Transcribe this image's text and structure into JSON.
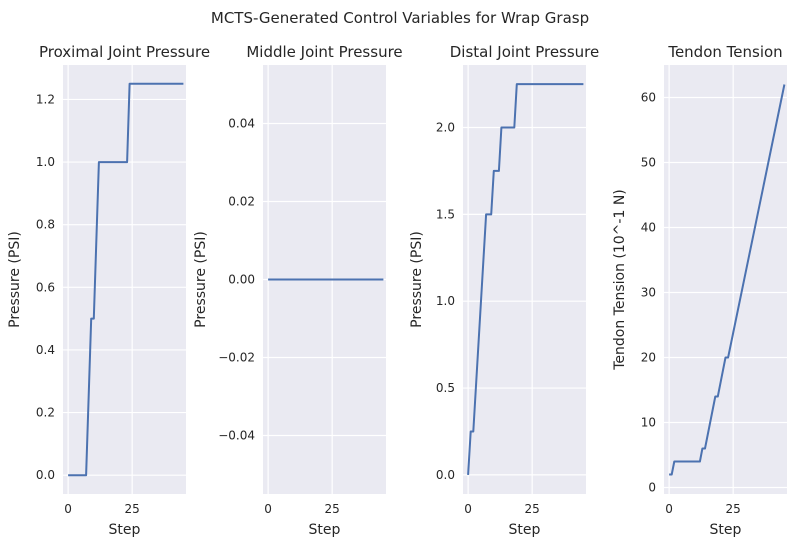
{
  "figure": {
    "title": "MCTS-Generated Control Variables for Wrap Grasp"
  },
  "chart_data": [
    {
      "type": "line",
      "title": "Proximal Joint Pressure",
      "xlabel": "Step",
      "ylabel": "Pressure (PSI)",
      "xlim": [
        -2,
        46
      ],
      "ylim": [
        -0.06,
        1.31
      ],
      "xticks": [
        0,
        25
      ],
      "yticks": [
        0.0,
        0.2,
        0.4,
        0.6,
        0.8,
        1.0,
        1.2
      ],
      "ytick_labels": [
        "0.0",
        "0.2",
        "0.4",
        "0.6",
        "0.8",
        "1.0",
        "1.2"
      ],
      "grid": true,
      "color": "#4c72b0",
      "x": [
        0,
        7,
        9,
        10,
        12,
        23,
        24,
        45
      ],
      "y": [
        0,
        0,
        0.5,
        0.5,
        1.0,
        1.0,
        1.25,
        1.25
      ]
    },
    {
      "type": "line",
      "title": "Middle Joint Pressure",
      "xlabel": "Step",
      "ylabel": "Pressure (PSI)",
      "xlim": [
        -2,
        46
      ],
      "ylim": [
        -0.055,
        0.055
      ],
      "xticks": [
        0,
        25
      ],
      "yticks": [
        -0.04,
        -0.02,
        0.0,
        0.02,
        0.04
      ],
      "ytick_labels": [
        "−0.04",
        "−0.02",
        "0.00",
        "0.02",
        "0.04"
      ],
      "grid": true,
      "color": "#4c72b0",
      "x": [
        0,
        45
      ],
      "y": [
        0,
        0
      ]
    },
    {
      "type": "line",
      "title": "Distal Joint Pressure",
      "xlabel": "Step",
      "ylabel": "Pressure (PSI)",
      "xlim": [
        -2,
        46
      ],
      "ylim": [
        -0.11,
        2.36
      ],
      "xticks": [
        0,
        25
      ],
      "yticks": [
        0.0,
        0.5,
        1.0,
        1.5,
        2.0
      ],
      "ytick_labels": [
        "0.0",
        "0.5",
        "1.0",
        "1.5",
        "2.0"
      ],
      "grid": true,
      "color": "#4c72b0",
      "x": [
        0,
        1,
        2,
        7,
        8,
        9,
        10,
        12,
        13,
        15,
        18,
        19,
        45
      ],
      "y": [
        0,
        0.25,
        0.25,
        1.5,
        1.5,
        1.5,
        1.75,
        1.75,
        2.0,
        2.0,
        2.0,
        2.25,
        2.25
      ]
    },
    {
      "type": "line",
      "title": "Tendon Tension",
      "xlabel": "Step",
      "ylabel": "Tendon Tension (10^-1 N)",
      "xlim": [
        -2,
        46
      ],
      "ylim": [
        -1,
        65
      ],
      "xticks": [
        0,
        25
      ],
      "yticks": [
        0,
        10,
        20,
        30,
        40,
        50,
        60
      ],
      "ytick_labels": [
        "0",
        "10",
        "20",
        "30",
        "40",
        "50",
        "60"
      ],
      "grid": true,
      "color": "#4c72b0",
      "x": [
        0,
        1,
        2,
        12,
        13,
        14,
        18,
        19,
        22,
        23,
        45
      ],
      "y": [
        2,
        2,
        4,
        4,
        6,
        6,
        14,
        14,
        20,
        20,
        62
      ]
    }
  ]
}
